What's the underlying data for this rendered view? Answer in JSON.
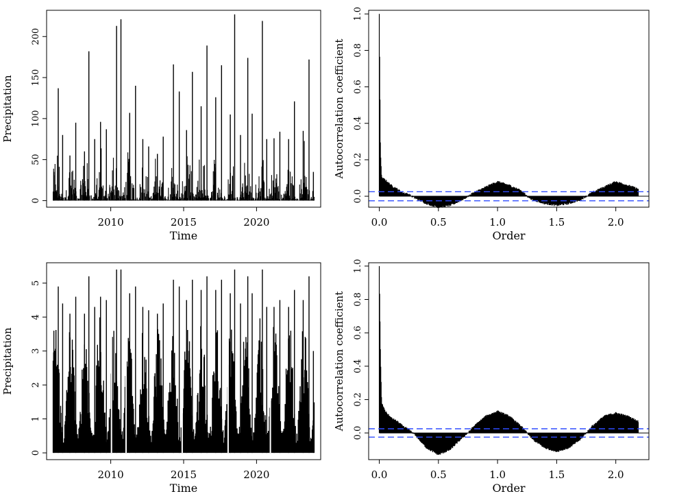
{
  "figure": {
    "layout": "2x2 grid",
    "background": "#ffffff",
    "ink_color": "#000000",
    "band_color": "#2f4cff"
  },
  "chart_data": [
    {
      "id": "precip-raw",
      "type": "line",
      "style": "vertical bars (histogram-like spikes)",
      "xlabel": "Time",
      "ylabel": "Precipitation",
      "xlim": [
        2005.6,
        2024.4
      ],
      "ylim": [
        -8,
        232
      ],
      "xticks": [
        2010,
        2015,
        2020
      ],
      "yticks": [
        0,
        50,
        100,
        150,
        200
      ],
      "series": [
        {
          "x": [
            2006.1,
            2006.4,
            2006.7,
            2007.2,
            2007.6,
            2008.2,
            2008.5,
            2008.9,
            2009.3,
            2009.7,
            2010.4,
            2010.7,
            2011.3,
            2011.7,
            2012.2,
            2012.6,
            2013.2,
            2013.6,
            2014.3,
            2014.7,
            2015.2,
            2015.6,
            2016.2,
            2016.6,
            2017.2,
            2017.6,
            2018.2,
            2018.5,
            2018.9,
            2019.4,
            2019.7,
            2020.4,
            2020.7,
            2021.2,
            2021.6,
            2022.2,
            2022.6,
            2023.2,
            2023.6,
            2023.9
          ],
          "y": [
            35,
            137,
            80,
            55,
            95,
            60,
            182,
            75,
            96,
            87,
            213,
            221,
            107,
            140,
            75,
            66,
            57,
            78,
            166,
            133,
            86,
            157,
            115,
            189,
            126,
            165,
            105,
            227,
            80,
            174,
            106,
            219,
            75,
            76,
            84,
            75,
            121,
            85,
            172,
            35
          ]
        }
      ]
    },
    {
      "id": "acf-raw",
      "type": "line",
      "style": "vertical bars (autocorrelation lags) with dashed confidence band",
      "xlabel": "Order",
      "ylabel": "Autocorrelation coefficient",
      "xlim": [
        -0.09,
        2.28
      ],
      "ylim": [
        -0.06,
        1.02
      ],
      "xticks": [
        0.0,
        0.5,
        1.0,
        1.5,
        2.0
      ],
      "xtick_labels": [
        "0.0",
        "0.5",
        "1.0",
        "1.5",
        "2.0"
      ],
      "yticks": [
        0.0,
        0.2,
        0.4,
        0.6,
        0.8,
        1.0
      ],
      "ytick_labels": [
        "0.0",
        "0.2",
        "0.4",
        "0.6",
        "0.8",
        "1.0"
      ],
      "lag_max": 2.19,
      "confidence_band": 0.025,
      "envelope": {
        "x": [
          0.0,
          0.01,
          0.02,
          0.05,
          0.1,
          0.15,
          0.2,
          0.25,
          0.3,
          0.4,
          0.5,
          0.6,
          0.7,
          0.75,
          0.8,
          0.9,
          1.0,
          1.1,
          1.2,
          1.25,
          1.3,
          1.4,
          1.5,
          1.6,
          1.7,
          1.75,
          1.8,
          1.9,
          2.0,
          2.1,
          2.19
        ],
        "y": [
          1.0,
          0.25,
          0.1,
          0.09,
          0.06,
          0.04,
          0.02,
          0.01,
          -0.01,
          -0.04,
          -0.06,
          -0.05,
          -0.02,
          0.0,
          0.02,
          0.05,
          0.08,
          0.06,
          0.03,
          0.0,
          -0.02,
          -0.04,
          -0.05,
          -0.04,
          -0.02,
          0.0,
          0.02,
          0.05,
          0.08,
          0.06,
          0.04
        ]
      }
    },
    {
      "id": "precip-transformed",
      "type": "line",
      "style": "vertical bars (histogram-like spikes)",
      "xlabel": "Time",
      "ylabel": "Precipitation",
      "xlim": [
        2005.6,
        2024.4
      ],
      "ylim": [
        -0.2,
        5.6
      ],
      "xticks": [
        2010,
        2015,
        2020
      ],
      "yticks": [
        0,
        1,
        2,
        3,
        4,
        5
      ],
      "series": [
        {
          "x": [
            2006.1,
            2006.4,
            2006.7,
            2007.2,
            2007.6,
            2008.2,
            2008.5,
            2008.9,
            2009.3,
            2009.7,
            2010.4,
            2010.7,
            2011.3,
            2011.7,
            2012.2,
            2012.6,
            2013.2,
            2013.6,
            2014.3,
            2014.7,
            2015.2,
            2015.6,
            2016.2,
            2016.6,
            2017.2,
            2017.6,
            2018.2,
            2018.5,
            2018.9,
            2019.4,
            2019.7,
            2020.4,
            2020.7,
            2021.2,
            2021.6,
            2022.2,
            2022.6,
            2023.2,
            2023.6,
            2023.9
          ],
          "y": [
            3.6,
            4.9,
            4.4,
            4.1,
            4.6,
            4.1,
            5.2,
            4.3,
            4.6,
            4.5,
            5.4,
            5.4,
            4.7,
            4.9,
            4.3,
            4.2,
            4.1,
            4.4,
            5.1,
            4.9,
            4.5,
            5.1,
            4.8,
            5.2,
            4.8,
            5.1,
            4.7,
            5.4,
            4.4,
            5.2,
            4.7,
            5.4,
            4.3,
            4.3,
            4.5,
            4.3,
            4.8,
            4.5,
            5.2,
            3.0
          ]
        }
      ]
    },
    {
      "id": "acf-transformed",
      "type": "line",
      "style": "vertical bars (autocorrelation lags) with dashed confidence band",
      "xlabel": "Order",
      "ylabel": "Autocorrelation coefficient",
      "xlim": [
        -0.09,
        2.28
      ],
      "ylim": [
        -0.16,
        1.02
      ],
      "xticks": [
        0.0,
        0.5,
        1.0,
        1.5,
        2.0
      ],
      "xtick_labels": [
        "0.0",
        "0.5",
        "1.0",
        "1.5",
        "2.0"
      ],
      "yticks": [
        0.0,
        0.2,
        0.4,
        0.6,
        0.8,
        1.0
      ],
      "ytick_labels": [
        "0.0",
        "0.2",
        "0.4",
        "0.6",
        "0.8",
        "1.0"
      ],
      "lag_max": 2.19,
      "confidence_band": 0.025,
      "envelope": {
        "x": [
          0.0,
          0.01,
          0.02,
          0.05,
          0.1,
          0.15,
          0.2,
          0.25,
          0.3,
          0.4,
          0.5,
          0.6,
          0.7,
          0.75,
          0.8,
          0.9,
          1.0,
          1.1,
          1.2,
          1.25,
          1.3,
          1.4,
          1.5,
          1.6,
          1.7,
          1.75,
          1.8,
          1.9,
          2.0,
          2.1,
          2.19
        ],
        "y": [
          1.0,
          0.47,
          0.18,
          0.13,
          0.09,
          0.07,
          0.04,
          0.02,
          -0.01,
          -0.09,
          -0.13,
          -0.1,
          -0.03,
          0.0,
          0.04,
          0.1,
          0.13,
          0.1,
          0.04,
          0.0,
          -0.04,
          -0.09,
          -0.11,
          -0.09,
          -0.04,
          0.0,
          0.04,
          0.1,
          0.12,
          0.1,
          0.07
        ]
      }
    }
  ]
}
